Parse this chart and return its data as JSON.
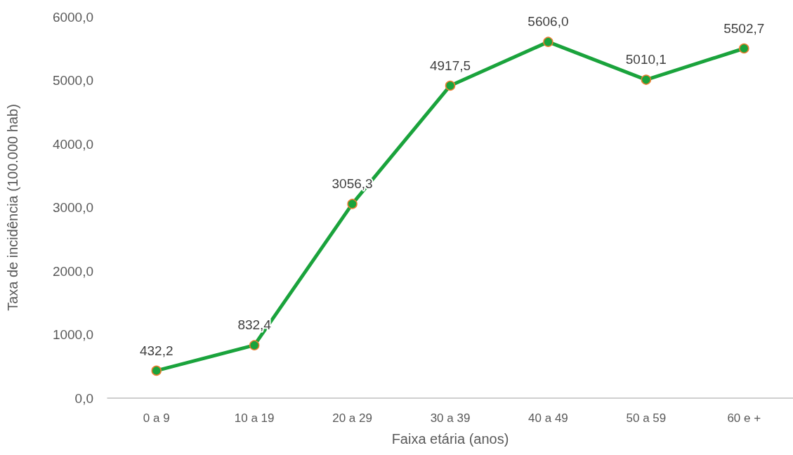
{
  "chart_data": {
    "type": "line",
    "xlabel": "Faixa etária (anos)",
    "ylabel": "Taxa de incidência (100.000 hab)",
    "categories": [
      "0 a 9",
      "10 a 19",
      "20 a 29",
      "30 a 39",
      "40 a 49",
      "50 a 59",
      "60 e +"
    ],
    "series": [
      {
        "color": "#1aa33c",
        "values": [
          432.2,
          832.4,
          3056.3,
          4917.5,
          5606.0,
          5010.1,
          5502.7
        ],
        "value_labels": [
          "432,2",
          "832,4",
          "3056,3",
          "4917,5",
          "5606,0",
          "5010,1",
          "5502,7"
        ]
      }
    ],
    "ylim": [
      0,
      6000
    ],
    "yticks": [
      {
        "value": 0,
        "label": "0,0"
      },
      {
        "value": 1000,
        "label": "1000,0"
      },
      {
        "value": 2000,
        "label": "2000,0"
      },
      {
        "value": 3000,
        "label": "3000,0"
      },
      {
        "value": 4000,
        "label": "4000,0"
      },
      {
        "value": 5000,
        "label": "5000,0"
      },
      {
        "value": 6000,
        "label": "6000,0"
      }
    ],
    "grid": false,
    "marker": "circle",
    "line_style": "solid"
  }
}
